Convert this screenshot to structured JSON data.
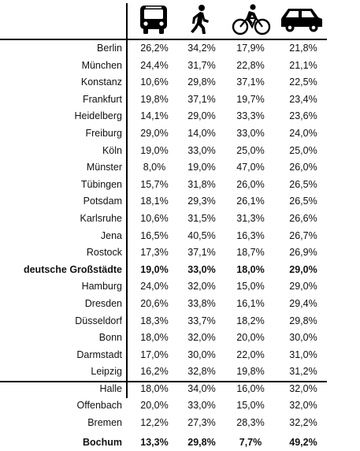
{
  "header": {
    "icons": [
      "bus-icon",
      "pedestrian-icon",
      "cyclist-icon",
      "car-icon"
    ]
  },
  "rows": [
    {
      "city": "Berlin",
      "bus": "26,2%",
      "walk": "34,2%",
      "bike": "17,9%",
      "car": "21,8%"
    },
    {
      "city": "München",
      "bus": "24,4%",
      "walk": "31,7%",
      "bike": "22,8%",
      "car": "21,1%"
    },
    {
      "city": "Konstanz",
      "bus": "10,6%",
      "walk": "29,8%",
      "bike": "37,1%",
      "car": "22,5%"
    },
    {
      "city": "Frankfurt",
      "bus": "19,8%",
      "walk": "37,1%",
      "bike": "19,7%",
      "car": "23,4%"
    },
    {
      "city": "Heidelberg",
      "bus": "14,1%",
      "walk": "29,0%",
      "bike": "33,3%",
      "car": "23,6%"
    },
    {
      "city": "Freiburg",
      "bus": "29,0%",
      "walk": "14,0%",
      "bike": "33,0%",
      "car": "24,0%"
    },
    {
      "city": "Köln",
      "bus": "19,0%",
      "walk": "33,0%",
      "bike": "25,0%",
      "car": "25,0%"
    },
    {
      "city": "Münster",
      "bus": "8,0%",
      "walk": "19,0%",
      "bike": "47,0%",
      "car": "26,0%"
    },
    {
      "city": "Tübingen",
      "bus": "15,7%",
      "walk": "31,8%",
      "bike": "26,0%",
      "car": "26,5%"
    },
    {
      "city": "Potsdam",
      "bus": "18,1%",
      "walk": "29,3%",
      "bike": "26,1%",
      "car": "26,5%"
    },
    {
      "city": "Karlsruhe",
      "bus": "10,6%",
      "walk": "31,5%",
      "bike": "31,3%",
      "car": "26,6%"
    },
    {
      "city": "Jena",
      "bus": "16,5%",
      "walk": "40,5%",
      "bike": "16,3%",
      "car": "26,7%"
    },
    {
      "city": "Rostock",
      "bus": "17,3%",
      "walk": "37,1%",
      "bike": "18,7%",
      "car": "26,9%"
    },
    {
      "city": "deutsche Großstädte",
      "bus": "19,0%",
      "walk": "33,0%",
      "bike": "18,0%",
      "car": "29,0%",
      "bold": true
    },
    {
      "city": "Hamburg",
      "bus": "24,0%",
      "walk": "32,0%",
      "bike": "15,0%",
      "car": "29,0%"
    },
    {
      "city": "Dresden",
      "bus": "20,6%",
      "walk": "33,8%",
      "bike": "16,1%",
      "car": "29,4%"
    },
    {
      "city": "Düsseldorf",
      "bus": "18,3%",
      "walk": "33,7%",
      "bike": "18,2%",
      "car": "29,8%"
    },
    {
      "city": "Bonn",
      "bus": "18,0%",
      "walk": "32,0%",
      "bike": "20,0%",
      "car": "30,0%"
    },
    {
      "city": "Darmstadt",
      "bus": "17,0%",
      "walk": "30,0%",
      "bike": "22,0%",
      "car": "31,0%"
    },
    {
      "city": "Leipzig",
      "bus": "16,2%",
      "walk": "32,8%",
      "bike": "19,8%",
      "car": "31,2%"
    },
    {
      "city": "Halle",
      "bus": "18,0%",
      "walk": "34,0%",
      "bike": "16,0%",
      "car": "32,0%"
    },
    {
      "city": "Offenbach",
      "bus": "20,0%",
      "walk": "33,0%",
      "bike": "15,0%",
      "car": "32,0%"
    },
    {
      "city": "Bremen",
      "bus": "12,2%",
      "walk": "27,3%",
      "bike": "28,3%",
      "car": "32,2%"
    },
    {
      "city": "Bochum",
      "bus": "13,3%",
      "walk": "29,8%",
      "bike": "7,7%",
      "car": "49,2%",
      "bold": true,
      "last": true
    }
  ]
}
